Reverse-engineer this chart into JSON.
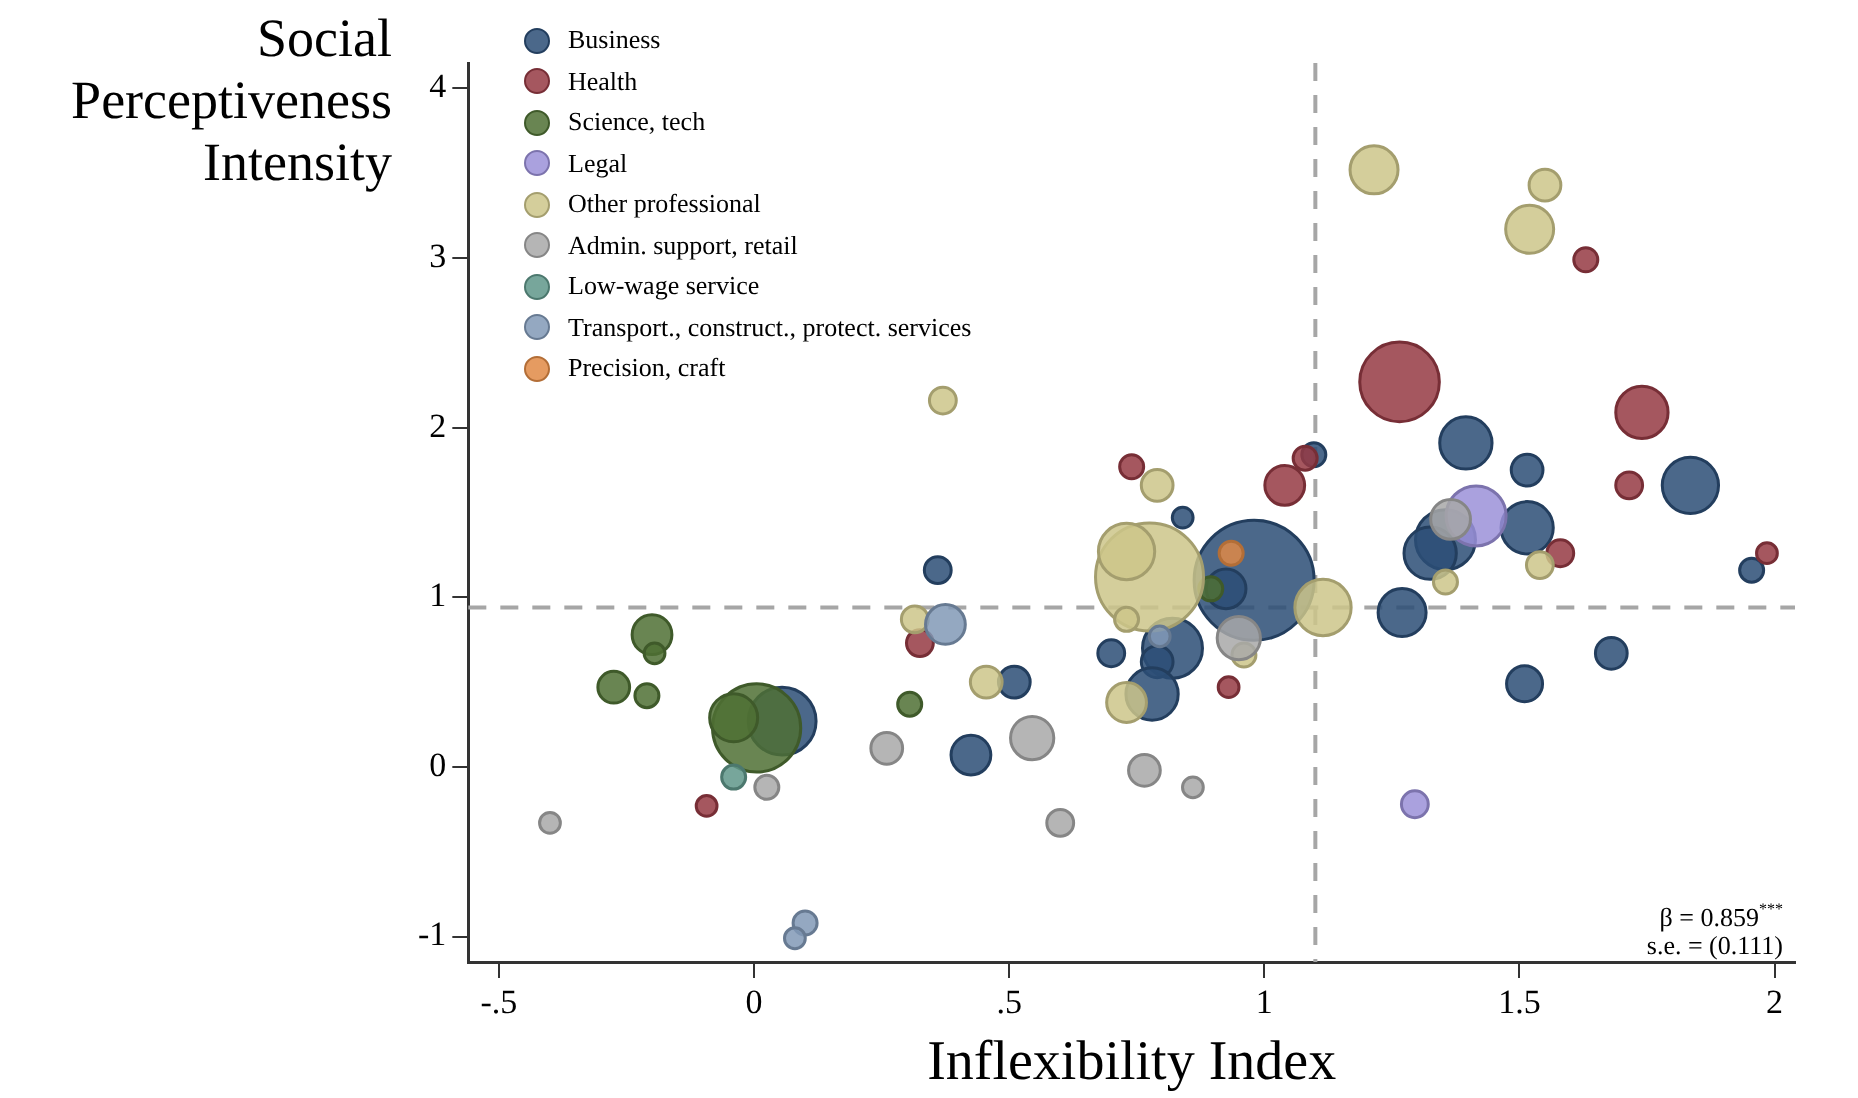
{
  "chart_data": {
    "type": "bubble",
    "xlabel": "Inflexibility Index",
    "ylabel": "Social Perceptiveness Intensity",
    "xlim": [
      -0.56,
      2.04
    ],
    "ylim": [
      -1.15,
      4.15
    ],
    "xticks": [
      {
        "value": -0.5,
        "label": "-.5"
      },
      0,
      {
        "value": 0.5,
        "label": ".5"
      },
      1,
      1.5,
      2
    ],
    "yticks": [
      -1,
      0,
      1,
      2,
      3,
      4
    ],
    "grid": false,
    "legend": "top left",
    "ref_lines": [
      {
        "axis": "x",
        "value": 1.1,
        "color": "#a6a6a6",
        "line_style": "dashed"
      },
      {
        "axis": "y",
        "value": 0.94,
        "color": "#a6a6a6",
        "line_style": "dashed"
      }
    ],
    "annotations": [
      "β = 0.859$^{***}$",
      "s.e. = (0.111)"
    ],
    "series": [
      {
        "name": "Business",
        "color": "#2c4d75",
        "x": [
          1.097,
          0.98,
          0.925,
          0.84,
          0.36,
          0.055,
          0.51,
          0.425,
          0.7,
          0.82,
          0.79,
          0.78,
          1.27,
          1.68,
          1.51,
          1.955,
          1.515,
          1.355,
          1.325,
          1.395,
          1.515,
          1.835
        ],
        "values": [
          1.84,
          1.1,
          1.05,
          1.47,
          1.16,
          0.27,
          0.5,
          0.07,
          0.67,
          0.7,
          0.62,
          0.43,
          0.91,
          0.67,
          0.49,
          1.16,
          1.41,
          1.34,
          1.26,
          1.91,
          1.75,
          1.66
        ],
        "sizes": [
          0.04,
          1,
          0.11,
          0.03,
          0.05,
          0.32,
          0.07,
          0.11,
          0.05,
          0.25,
          0.07,
          0.19,
          0.16,
          0.07,
          0.09,
          0.04,
          0.19,
          0.25,
          0.19,
          0.19,
          0.07,
          0.22
        ]
      },
      {
        "name": "Health",
        "color": "#953a43",
        "x": [
          1.265,
          1.63,
          1.74,
          1.715,
          1.04,
          1.08,
          0.74,
          1.58,
          1.985,
          0.93,
          0.325,
          -0.093
        ],
        "values": [
          2.27,
          2.99,
          2.09,
          1.66,
          1.66,
          1.82,
          1.77,
          1.26,
          1.26,
          0.47,
          0.73,
          -0.23
        ],
        "sizes": [
          0.44,
          0.04,
          0.19,
          0.05,
          0.11,
          0.04,
          0.04,
          0.05,
          0.03,
          0.03,
          0.05,
          0.03
        ]
      },
      {
        "name": "Science, tech",
        "color": "#4f7034",
        "x": [
          -0.2,
          -0.195,
          -0.275,
          -0.21,
          0.005,
          -0.04,
          0.305,
          0.895
        ],
        "values": [
          0.78,
          0.67,
          0.47,
          0.42,
          0.23,
          0.29,
          0.37,
          1.05
        ],
        "sizes": [
          0.11,
          0.03,
          0.07,
          0.04,
          0.54,
          0.16,
          0.04,
          0.04
        ]
      },
      {
        "name": "Legal",
        "color": "#9b90d8",
        "x": [
          1.415,
          1.295
        ],
        "values": [
          1.48,
          -0.22
        ],
        "sizes": [
          0.25,
          0.05
        ]
      },
      {
        "name": "Other professional",
        "color": "#cdc68a",
        "x": [
          1.215,
          1.55,
          1.52,
          0.37,
          0.79,
          0.775,
          0.73,
          0.73,
          1.115,
          0.96,
          1.355,
          1.54,
          0.315,
          0.455,
          0.73
        ],
        "values": [
          3.52,
          3.43,
          3.17,
          2.16,
          1.66,
          1.12,
          1.27,
          0.87,
          0.94,
          0.66,
          1.09,
          1.19,
          0.87,
          0.5,
          0.38
        ],
        "sizes": [
          0.16,
          0.07,
          0.16,
          0.05,
          0.07,
          0.81,
          0.22,
          0.04,
          0.22,
          0.04,
          0.04,
          0.05,
          0.05,
          0.07,
          0.11
        ]
      },
      {
        "name": "Admin. support, retail",
        "color": "#a8a8a8",
        "x": [
          -0.4,
          0.025,
          0.26,
          0.545,
          0.6,
          0.765,
          0.86,
          0.95,
          1.365
        ],
        "values": [
          -0.33,
          -0.12,
          0.11,
          0.17,
          -0.33,
          -0.02,
          -0.12,
          0.76,
          1.46
        ],
        "sizes": [
          0.03,
          0.04,
          0.07,
          0.13,
          0.05,
          0.07,
          0.03,
          0.13,
          0.11
        ]
      },
      {
        "name": "Low-wage service",
        "color": "#5f968a",
        "x": [
          -0.04
        ],
        "values": [
          -0.06
        ],
        "sizes": [
          0.04
        ]
      },
      {
        "name": "Transport., construct., protect. services",
        "color": "#8199b6",
        "x": [
          0.375,
          0.1,
          0.08,
          0.795
        ],
        "values": [
          0.84,
          -0.92,
          -1.01,
          0.77
        ],
        "sizes": [
          0.11,
          0.04,
          0.03,
          0.03
        ]
      },
      {
        "name": "Precision, craft",
        "color": "#e08a45",
        "x": [
          0.935
        ],
        "values": [
          1.26
        ],
        "sizes": [
          0.04
        ]
      }
    ]
  }
}
